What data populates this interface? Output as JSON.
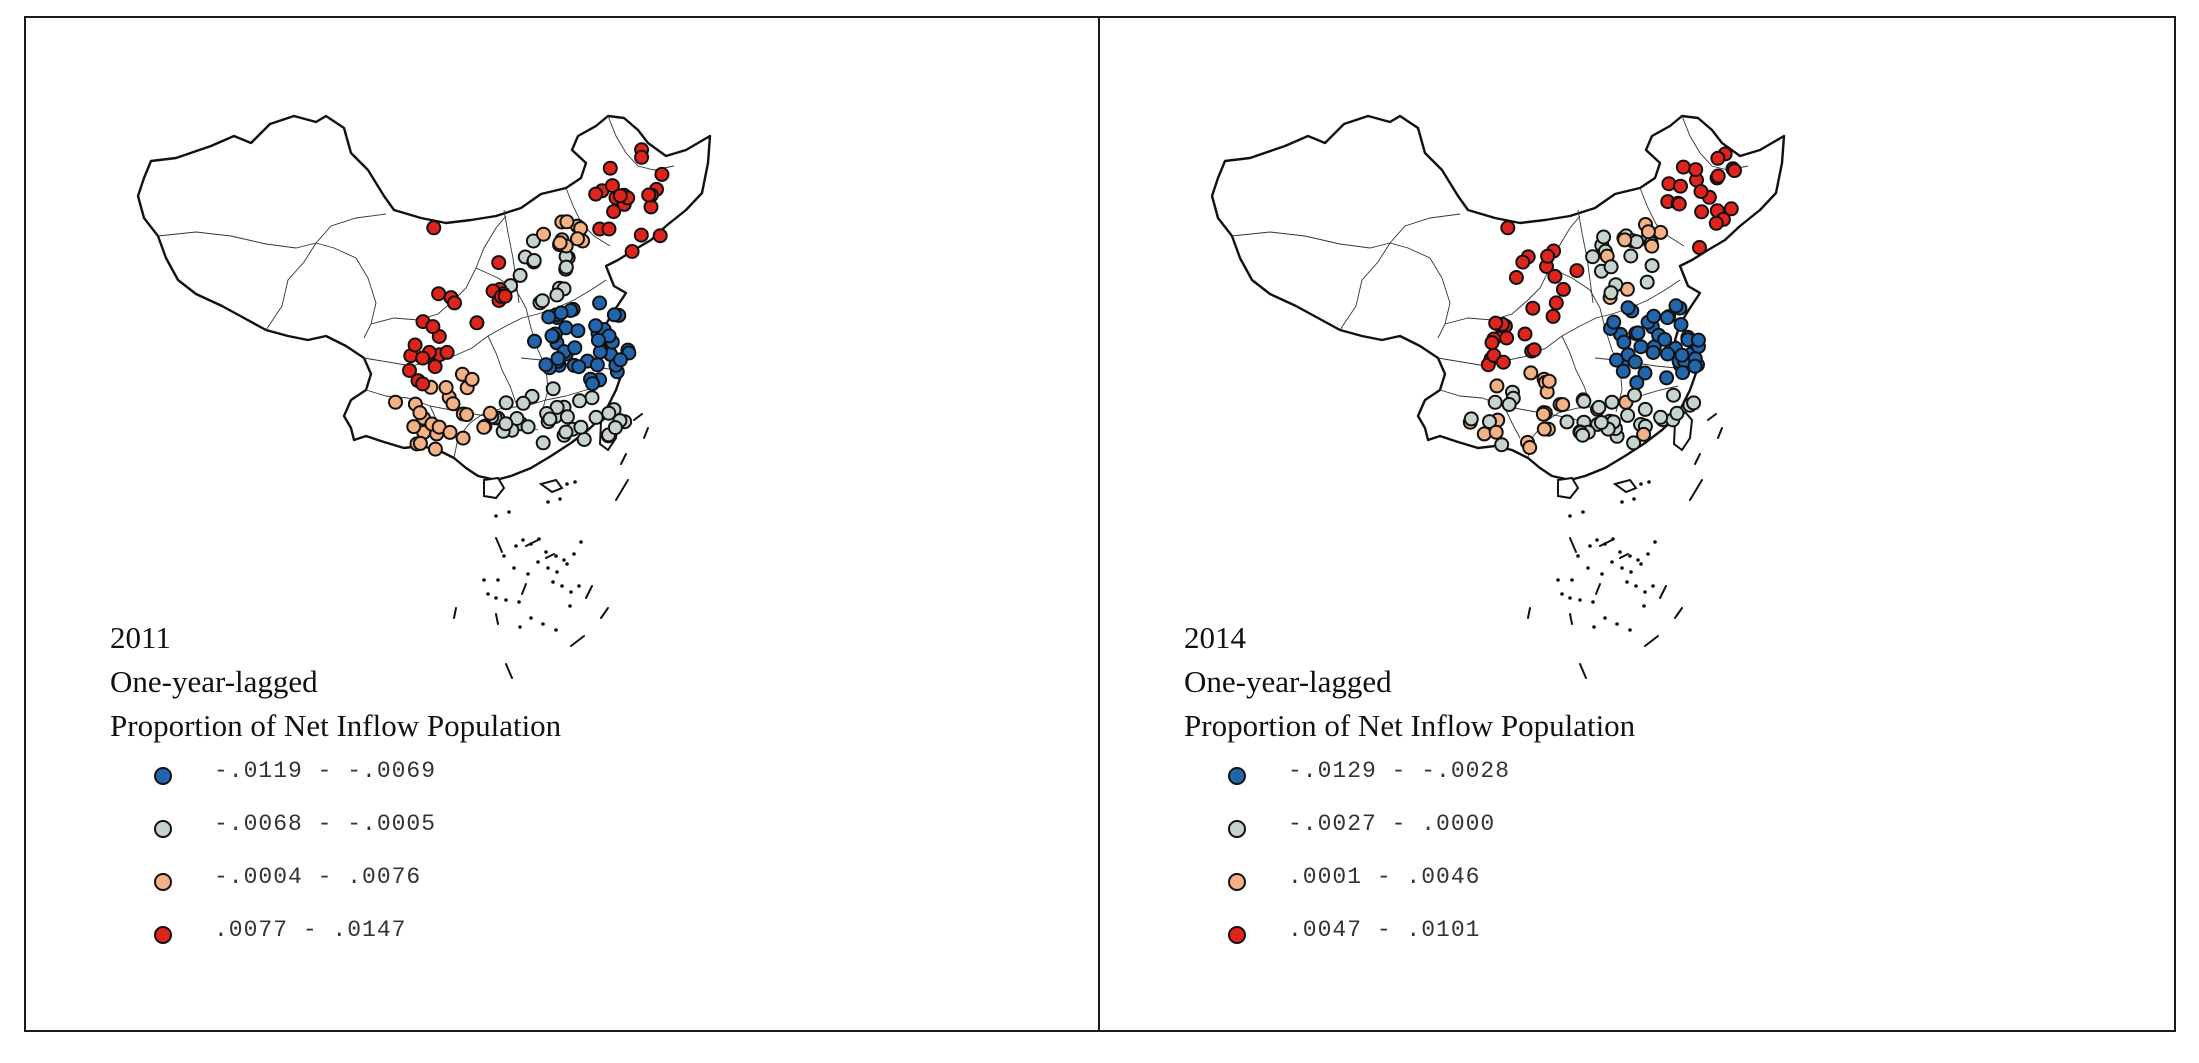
{
  "colors": {
    "class1": "#2166ac",
    "class2": "#c5d4cc",
    "class3": "#f4b183",
    "class4": "#e0241c",
    "outline": "#111111",
    "border": "#222222"
  },
  "panels": [
    {
      "year": "2011",
      "line1": "One-year-lagged",
      "line2": "Proportion of Net Inflow Population",
      "legend": [
        {
          "label": "-.0119 - -.0069",
          "color_key": "class1"
        },
        {
          "label": "-.0068 - -.0005",
          "color_key": "class2"
        },
        {
          "label": "-.0004 - .0076",
          "color_key": "class3"
        },
        {
          "label": ".0077 - .0147",
          "color_key": "class4"
        }
      ]
    },
    {
      "year": "2014",
      "line1": "One-year-lagged",
      "line2": "Proportion of Net Inflow Population",
      "legend": [
        {
          "label": "-.0129 - -.0028",
          "color_key": "class1"
        },
        {
          "label": "-.0027 - .0000",
          "color_key": "class2"
        },
        {
          "label": ".0001 - .0046",
          "color_key": "class3"
        },
        {
          "label": ".0047 - .0101",
          "color_key": "class4"
        }
      ]
    }
  ]
}
